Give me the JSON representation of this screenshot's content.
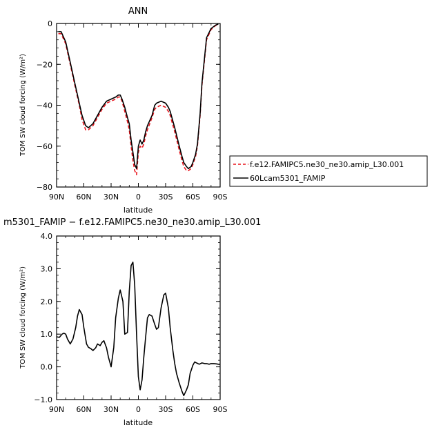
{
  "chart_data": [
    {
      "type": "line",
      "title": "ANN",
      "xlabel": "latitude",
      "ylabel": "TOM SW cloud forcing (W/m²)",
      "xlim": [
        90,
        -90
      ],
      "ylim": [
        -80,
        0
      ],
      "xticks": [
        90,
        60,
        30,
        0,
        -30,
        -60,
        -90
      ],
      "xtick_labels": [
        "90N",
        "60N",
        "30N",
        "0",
        "30S",
        "60S",
        "90S"
      ],
      "yticks": [
        -80,
        -60,
        -40,
        -20,
        0
      ],
      "ytick_labels": [
        "−80",
        "−60",
        "−40",
        "−20",
        "0"
      ],
      "grid": false,
      "legend_position": "right",
      "series": [
        {
          "name": "f.e12.FAMIPC5.ne30_ne30.amip_L30.001",
          "color": "#e8141c",
          "dash": "dashed",
          "x": [
            88,
            85,
            80,
            75,
            70,
            65,
            62,
            58,
            55,
            50,
            45,
            40,
            35,
            30,
            25,
            22,
            20,
            18,
            15,
            12,
            10,
            8,
            6,
            4,
            2,
            0,
            -2,
            -4,
            -6,
            -8,
            -10,
            -15,
            -18,
            -20,
            -25,
            -30,
            -33,
            -35,
            -40,
            -45,
            -48,
            -50,
            -53,
            -55,
            -58,
            -60,
            -63,
            -65,
            -68,
            -70,
            -75,
            -80,
            -85,
            -88
          ],
          "y": [
            -5,
            -5,
            -10,
            -20,
            -30,
            -40,
            -47,
            -52,
            -52,
            -50,
            -46,
            -42,
            -39,
            -38,
            -37,
            -36,
            -36,
            -38,
            -43,
            -48,
            -52,
            -60,
            -67,
            -72,
            -74,
            -63,
            -60,
            -61,
            -59,
            -55,
            -52,
            -46,
            -42,
            -41,
            -40,
            -41,
            -43,
            -45,
            -53,
            -62,
            -67,
            -70,
            -72,
            -72,
            -71,
            -69,
            -65,
            -60,
            -45,
            -30,
            -8,
            -3,
            -1,
            -0.5
          ]
        },
        {
          "name": "60Lcam5301_FAMIP",
          "color": "#000000",
          "dash": "solid",
          "x": [
            88,
            85,
            80,
            75,
            70,
            65,
            62,
            58,
            55,
            50,
            45,
            40,
            35,
            30,
            25,
            22,
            20,
            18,
            15,
            12,
            10,
            8,
            6,
            4,
            2,
            0,
            -2,
            -4,
            -6,
            -8,
            -10,
            -15,
            -18,
            -20,
            -25,
            -30,
            -33,
            -35,
            -40,
            -45,
            -48,
            -50,
            -53,
            -55,
            -58,
            -60,
            -63,
            -65,
            -68,
            -70,
            -75,
            -80,
            -85,
            -88
          ],
          "y": [
            -4,
            -4,
            -9,
            -19,
            -29,
            -39,
            -45,
            -50,
            -51,
            -49,
            -45,
            -41,
            -38,
            -37,
            -36,
            -35,
            -35,
            -37,
            -41,
            -46,
            -49,
            -57,
            -63,
            -69,
            -71,
            -60,
            -57,
            -59,
            -57,
            -53,
            -50,
            -45,
            -40,
            -39,
            -38,
            -39,
            -41,
            -43,
            -51,
            -60,
            -65,
            -68,
            -70,
            -71,
            -70,
            -68,
            -64,
            -59,
            -44,
            -29,
            -7,
            -2.5,
            -0.8,
            -0.3
          ]
        }
      ]
    },
    {
      "type": "line",
      "title": "m5301_FAMIP − f.e12.FAMIPC5.ne30_ne30.amip_L30.001",
      "xlabel": "latitude",
      "ylabel": "TOM SW cloud forcing (W/m²)",
      "xlim": [
        90,
        -90
      ],
      "ylim": [
        -1.0,
        4.0
      ],
      "xticks": [
        90,
        60,
        30,
        0,
        -30,
        -60,
        -90
      ],
      "xtick_labels": [
        "90N",
        "60N",
        "30N",
        "0",
        "30S",
        "60S",
        "90S"
      ],
      "yticks": [
        -1.0,
        0.0,
        1.0,
        2.0,
        3.0,
        4.0
      ],
      "ytick_labels": [
        "−1.0",
        "0.0",
        "1.0",
        "2.0",
        "3.0",
        "4.0"
      ],
      "grid": false,
      "series": [
        {
          "color": "#000000",
          "dash": "solid",
          "x": [
            90,
            87,
            84,
            82,
            80,
            78,
            75,
            72,
            69,
            67,
            65,
            62,
            60,
            57,
            55,
            52,
            50,
            47,
            45,
            42,
            40,
            38,
            35,
            33,
            30,
            27,
            25,
            22,
            20,
            17,
            15,
            12,
            10,
            8,
            6,
            4,
            2,
            0,
            -2,
            -4,
            -6,
            -8,
            -10,
            -12,
            -15,
            -18,
            -20,
            -22,
            -25,
            -28,
            -30,
            -33,
            -35,
            -38,
            -40,
            -42,
            -45,
            -48,
            -50,
            -53,
            -55,
            -57,
            -60,
            -62,
            -64,
            -67,
            -70,
            -73,
            -75,
            -78,
            -80,
            -83,
            -86,
            -88,
            -90
          ],
          "y": [
            0.92,
            0.9,
            1.0,
            1.03,
            1.0,
            0.85,
            0.7,
            0.85,
            1.2,
            1.55,
            1.75,
            1.6,
            1.2,
            0.7,
            0.6,
            0.55,
            0.5,
            0.58,
            0.7,
            0.65,
            0.75,
            0.8,
            0.58,
            0.3,
            0.0,
            0.6,
            1.5,
            2.1,
            2.35,
            2.0,
            1.0,
            1.05,
            2.3,
            3.1,
            3.2,
            2.5,
            1.0,
            -0.3,
            -0.7,
            -0.4,
            0.3,
            0.9,
            1.5,
            1.6,
            1.55,
            1.3,
            1.15,
            1.2,
            1.8,
            2.2,
            2.25,
            1.8,
            1.2,
            0.5,
            0.1,
            -0.2,
            -0.5,
            -0.75,
            -0.88,
            -0.7,
            -0.55,
            -0.2,
            0.05,
            0.15,
            0.12,
            0.08,
            0.12,
            0.1,
            0.1,
            0.08,
            0.1,
            0.1,
            0.09,
            0.08,
            0.08
          ]
        }
      ]
    }
  ]
}
